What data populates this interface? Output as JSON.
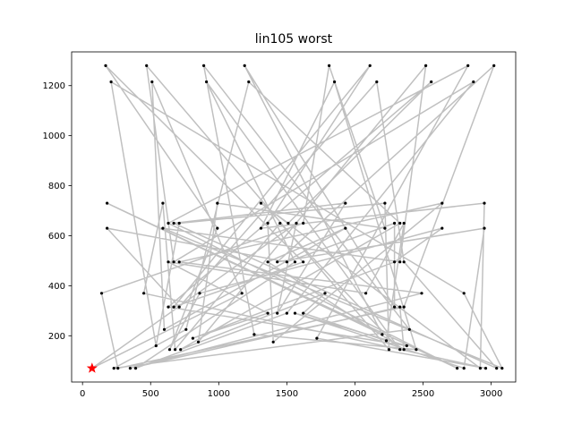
{
  "chart_data": {
    "type": "line",
    "title": "lin105 worst",
    "xlabel": "",
    "ylabel": "",
    "xlim": [
      -80,
      3180
    ],
    "ylim": [
      15,
      1335
    ],
    "xticks": [
      0,
      500,
      1000,
      1500,
      2000,
      2500,
      3000
    ],
    "yticks": [
      200,
      400,
      600,
      800,
      1000,
      1200
    ],
    "grid": false,
    "colors": {
      "route": "#c0c0c0",
      "city": "#000000",
      "start": "#ff0000"
    },
    "start": {
      "x": 70,
      "y": 70
    },
    "cities": [
      [
        70,
        70
      ],
      [
        230,
        70
      ],
      [
        260,
        70
      ],
      [
        350,
        70
      ],
      [
        390,
        70
      ],
      [
        2750,
        70
      ],
      [
        2800,
        70
      ],
      [
        3040,
        70
      ],
      [
        3080,
        70
      ],
      [
        2920,
        70
      ],
      [
        2960,
        70
      ],
      [
        170,
        1280
      ],
      [
        470,
        1280
      ],
      [
        890,
        1280
      ],
      [
        1190,
        1280
      ],
      [
        1810,
        1280
      ],
      [
        2110,
        1280
      ],
      [
        2520,
        1280
      ],
      [
        2830,
        1280
      ],
      [
        3020,
        1280
      ],
      [
        210,
        1215
      ],
      [
        510,
        1215
      ],
      [
        910,
        1215
      ],
      [
        1220,
        1215
      ],
      [
        1850,
        1215
      ],
      [
        2160,
        1215
      ],
      [
        2560,
        1215
      ],
      [
        2870,
        1215
      ],
      [
        180,
        730
      ],
      [
        590,
        730
      ],
      [
        990,
        730
      ],
      [
        1310,
        730
      ],
      [
        1930,
        730
      ],
      [
        2220,
        730
      ],
      [
        2640,
        730
      ],
      [
        2950,
        730
      ],
      [
        180,
        630
      ],
      [
        590,
        630
      ],
      [
        990,
        630
      ],
      [
        1310,
        630
      ],
      [
        1930,
        630
      ],
      [
        2220,
        630
      ],
      [
        2640,
        630
      ],
      [
        2950,
        630
      ],
      [
        630,
        650
      ],
      [
        670,
        650
      ],
      [
        710,
        650
      ],
      [
        1360,
        650
      ],
      [
        1450,
        650
      ],
      [
        1510,
        650
      ],
      [
        1570,
        650
      ],
      [
        1620,
        650
      ],
      [
        2290,
        650
      ],
      [
        2330,
        650
      ],
      [
        2360,
        650
      ],
      [
        630,
        495
      ],
      [
        670,
        495
      ],
      [
        710,
        495
      ],
      [
        1360,
        495
      ],
      [
        1430,
        495
      ],
      [
        1500,
        495
      ],
      [
        1560,
        495
      ],
      [
        1620,
        495
      ],
      [
        2290,
        495
      ],
      [
        2330,
        495
      ],
      [
        2360,
        495
      ],
      [
        140,
        370
      ],
      [
        450,
        370
      ],
      [
        860,
        370
      ],
      [
        1170,
        370
      ],
      [
        1780,
        370
      ],
      [
        2080,
        370
      ],
      [
        2490,
        370
      ],
      [
        2800,
        370
      ],
      [
        630,
        315
      ],
      [
        670,
        315
      ],
      [
        710,
        315
      ],
      [
        1360,
        290
      ],
      [
        1430,
        290
      ],
      [
        1500,
        290
      ],
      [
        1560,
        290
      ],
      [
        1620,
        290
      ],
      [
        2290,
        315
      ],
      [
        2330,
        315
      ],
      [
        2360,
        315
      ],
      [
        600,
        225
      ],
      [
        760,
        225
      ],
      [
        1260,
        205
      ],
      [
        2200,
        205
      ],
      [
        2400,
        225
      ],
      [
        540,
        160
      ],
      [
        810,
        190
      ],
      [
        850,
        175
      ],
      [
        1400,
        175
      ],
      [
        1720,
        190
      ],
      [
        2230,
        180
      ],
      [
        2380,
        160
      ],
      [
        640,
        145
      ],
      [
        680,
        145
      ],
      [
        720,
        145
      ],
      [
        2250,
        145
      ],
      [
        2330,
        145
      ],
      [
        2360,
        145
      ],
      [
        2450,
        145
      ]
    ],
    "route": [
      70,
      99,
      53,
      23,
      86,
      1,
      89,
      13,
      87,
      103,
      24,
      39,
      35,
      9,
      31,
      49,
      26,
      74,
      96,
      80,
      6,
      43,
      59,
      19,
      84,
      2,
      66,
      51,
      15,
      41,
      30,
      92,
      17,
      64,
      37,
      8,
      73,
      20,
      90,
      46,
      33,
      100,
      12,
      56,
      27,
      79,
      4,
      61,
      22,
      101,
      48,
      98,
      29,
      67,
      10,
      94,
      18,
      44,
      5,
      28,
      88,
      14,
      82,
      52,
      60,
      36,
      104,
      76,
      25,
      65,
      7,
      45,
      32,
      78,
      50,
      0,
      69,
      21,
      85,
      40,
      58,
      102,
      83,
      3,
      72,
      57,
      34,
      93,
      47,
      16,
      75,
      62,
      11,
      38,
      97,
      68,
      42,
      63,
      91,
      77,
      55,
      71,
      54,
      95,
      81,
      70
    ]
  }
}
